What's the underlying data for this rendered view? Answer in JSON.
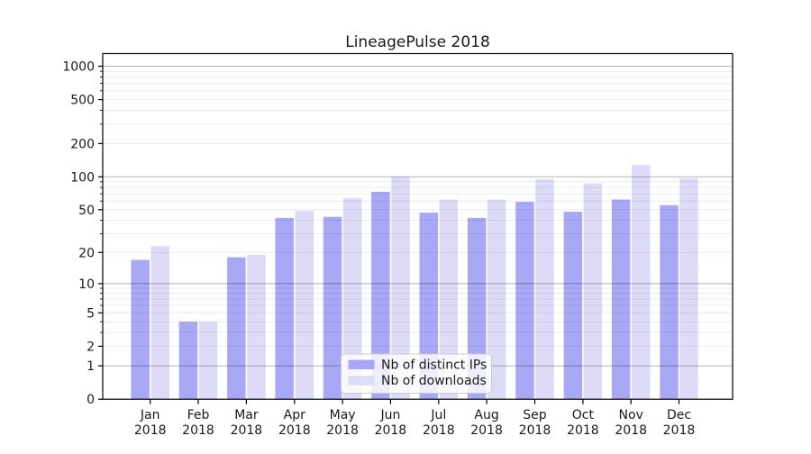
{
  "chart_data": {
    "type": "bar",
    "title": "LineagePulse 2018",
    "categories": [
      "Jan",
      "Feb",
      "Mar",
      "Apr",
      "May",
      "Jun",
      "Jul",
      "Aug",
      "Sep",
      "Oct",
      "Nov",
      "Dec"
    ],
    "year": "2018",
    "series": [
      {
        "name": "Nb of distinct IPs",
        "color": "#a8a8f6",
        "values": [
          17,
          4,
          18,
          42,
          43,
          73,
          47,
          42,
          59,
          48,
          62,
          55
        ]
      },
      {
        "name": "Nb of downloads",
        "color": "#dcdcf8",
        "values": [
          23,
          4,
          19,
          49,
          64,
          100,
          62,
          62,
          95,
          87,
          128,
          97
        ]
      }
    ],
    "yscale": "log1p",
    "yticks": [
      0,
      1,
      2,
      5,
      10,
      20,
      50,
      100,
      200,
      500,
      1000
    ],
    "ylim": [
      0,
      1300
    ],
    "grid": "both",
    "legend_position": "lower-center",
    "colors": {
      "major_grid": "rgba(0,0,0,0.30)",
      "minor_grid": "rgba(0,0,0,0.08)",
      "spine": "#000000",
      "legend_border": "#cccccc",
      "legend_bg": "rgba(255,255,255,0.8)"
    }
  }
}
